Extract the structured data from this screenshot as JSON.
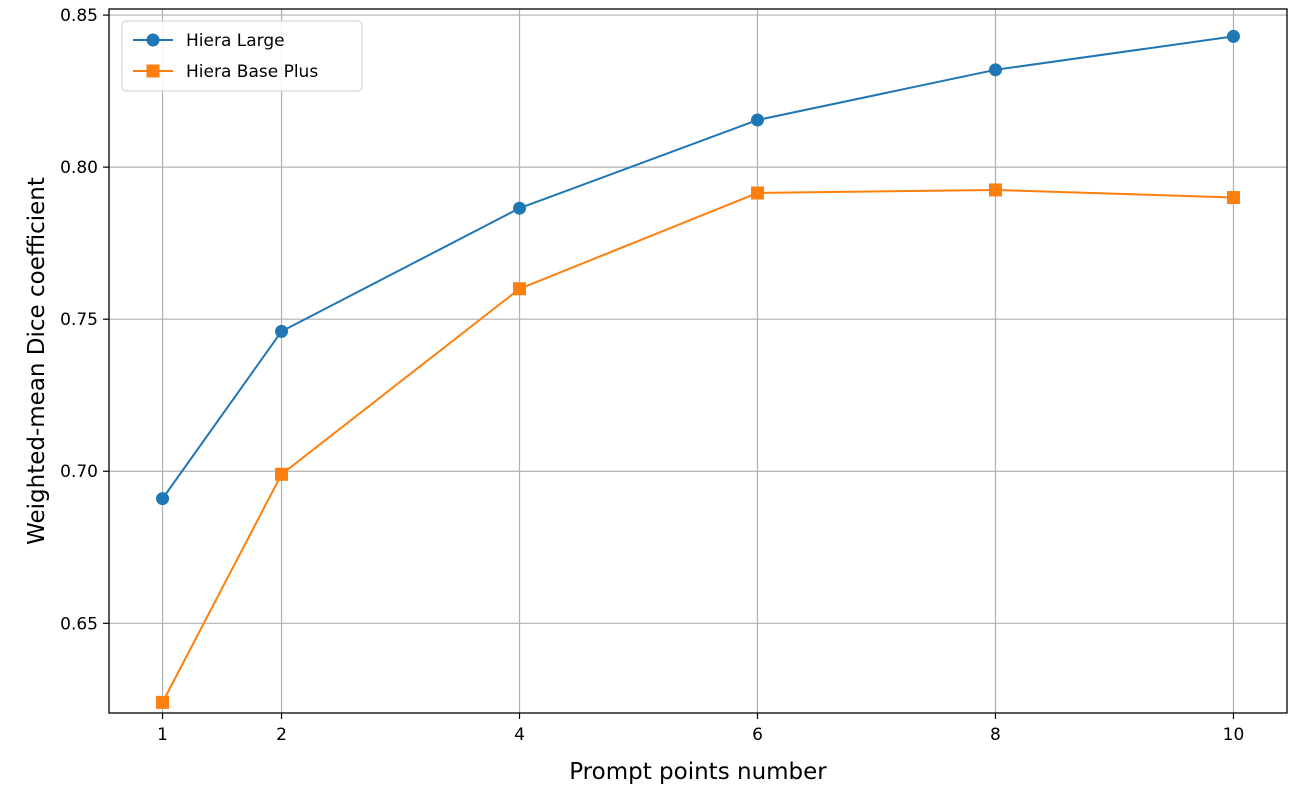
{
  "chart_data": {
    "type": "line",
    "title": "",
    "xlabel": "Prompt points number",
    "ylabel": "Weighted-mean Dice coefficient",
    "x": [
      1,
      2,
      4,
      6,
      8,
      10
    ],
    "xticks": [
      "1",
      "2",
      "4",
      "6",
      "8",
      "10"
    ],
    "yticks": [
      "0.65",
      "0.70",
      "0.75",
      "0.80",
      "0.85"
    ],
    "ytick_values": [
      0.65,
      0.7,
      0.75,
      0.8,
      0.85
    ],
    "xlim": [
      0.55,
      10.45
    ],
    "ylim": [
      0.6205,
      0.852
    ],
    "grid": true,
    "legend_position": "top-left",
    "series": [
      {
        "name": "Hiera Large",
        "marker": "circle",
        "color": "#1f77b4",
        "values": [
          0.691,
          0.746,
          0.7865,
          0.8155,
          0.832,
          0.843
        ]
      },
      {
        "name": "Hiera Base Plus",
        "marker": "square",
        "color": "#ff7f0e",
        "values": [
          0.624,
          0.699,
          0.76,
          0.7915,
          0.7925,
          0.79
        ]
      }
    ]
  }
}
